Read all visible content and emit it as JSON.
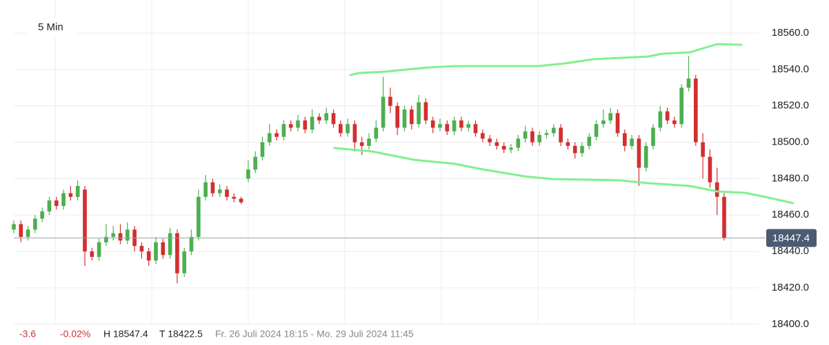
{
  "chart_data": {
    "type": "candlestick",
    "label": "5 Min",
    "up_color": "#4caf50",
    "down_color": "#d32f2f",
    "grid": true,
    "ylim": [
      18395,
      18578.2
    ],
    "yticks": [
      {
        "value": 18400,
        "label": "18400.0"
      },
      {
        "value": 18420,
        "label": "18420.0"
      },
      {
        "value": 18440,
        "label": "18440.0"
      },
      {
        "value": 18460,
        "label": "18460.0"
      },
      {
        "value": 18480,
        "label": "18480.0"
      },
      {
        "value": 18500,
        "label": "18500.0"
      },
      {
        "value": 18520,
        "label": "18520.0"
      },
      {
        "value": 18540,
        "label": "18540.0"
      },
      {
        "value": 18560,
        "label": "18560.0"
      }
    ],
    "last_price": 18447.4,
    "open": [
      18452,
      18455,
      18448,
      18452,
      18458,
      18462,
      18468,
      18465,
      18472,
      18470,
      18474,
      18440,
      18437,
      18445,
      18448,
      18450,
      18446,
      18452,
      18443,
      18440,
      18435,
      18445,
      18438,
      18450,
      18428,
      18440,
      18448,
      18470,
      18478,
      18472,
      18474,
      18470,
      18469,
      18480,
      18485,
      18492,
      18500,
      18505,
      18503,
      18510,
      18508,
      18512,
      18507,
      18514,
      18512,
      18516,
      18510,
      18505,
      18510,
      18500,
      18498,
      18502,
      18508,
      18525,
      18520,
      18508,
      18518,
      18510,
      18522,
      18512,
      18508,
      18510,
      18506,
      18512,
      18508,
      18510,
      18505,
      18502,
      18500,
      18498,
      18496,
      18497,
      18502,
      18506,
      18500,
      18504,
      18505,
      18508,
      18500,
      18498,
      18494,
      18498,
      18503,
      18510,
      18512,
      18516,
      18505,
      18498,
      18502,
      18486,
      18498,
      18508,
      18517,
      18512,
      18510,
      18530,
      18535,
      18500,
      18492,
      18478,
      18470
    ],
    "high": [
      18457,
      18457,
      18454,
      18460,
      18464,
      18470,
      18470,
      18474,
      18476,
      18479,
      18476,
      18442,
      18447,
      18455,
      18454,
      18455,
      18456,
      18454,
      18445,
      18442,
      18448,
      18447,
      18453,
      18452,
      18442,
      18452,
      18474,
      18482,
      18480,
      18477,
      18476,
      18472,
      18470,
      18490,
      18495,
      18503,
      18510,
      18507,
      18512,
      18512,
      18515,
      18514,
      18518,
      18516,
      18519,
      18518,
      18512,
      18513,
      18512,
      18503,
      18505,
      18512,
      18536,
      18530,
      18522,
      18520,
      18520,
      18526,
      18524,
      18514,
      18513,
      18512,
      18514,
      18514,
      18512,
      18512,
      18507,
      18504,
      18502,
      18500,
      18499,
      18504,
      18509,
      18508,
      18506,
      18507,
      18510,
      18510,
      18502,
      18500,
      18500,
      18505,
      18512,
      18518,
      18519,
      18518,
      18507,
      18504,
      18504,
      18500,
      18510,
      18520,
      18519,
      18514,
      18532,
      18547.4,
      18537,
      18505,
      18496,
      18486,
      18472
    ],
    "low": [
      18450,
      18445,
      18446,
      18450,
      18456,
      18460,
      18463,
      18463,
      18468,
      18468,
      18432,
      18435,
      18435,
      18443,
      18446,
      18444,
      18444,
      18440,
      18436,
      18432,
      18433,
      18436,
      18436,
      18422.5,
      18426,
      18438,
      18446,
      18468,
      18470,
      18470,
      18468,
      18467,
      18466,
      18478,
      18483,
      18490,
      18498,
      18501,
      18501,
      18506,
      18506,
      18505,
      18505,
      18510,
      18510,
      18508,
      18503,
      18503,
      18495,
      18493,
      18496,
      18500,
      18506,
      18516,
      18504,
      18506,
      18507,
      18508,
      18510,
      18505,
      18506,
      18504,
      18504,
      18506,
      18506,
      18503,
      18500,
      18498,
      18496,
      18494,
      18494,
      18495,
      18500,
      18498,
      18498,
      18502,
      18503,
      18498,
      18496,
      18491,
      18492,
      18496,
      18501,
      18508,
      18510,
      18503,
      18495,
      18496,
      18476,
      18484,
      18496,
      18506,
      18510,
      18508,
      18508,
      18528,
      18498,
      18480,
      18475,
      18460,
      18446
    ],
    "close": [
      18455,
      18448,
      18452,
      18458,
      18462,
      18468,
      18465,
      18472,
      18470,
      18476,
      18440,
      18437,
      18445,
      18448,
      18450,
      18446,
      18452,
      18443,
      18440,
      18435,
      18445,
      18438,
      18450,
      18428,
      18440,
      18448,
      18470,
      18478,
      18472,
      18474,
      18470,
      18469,
      18467,
      18485,
      18492,
      18500,
      18505,
      18503,
      18510,
      18508,
      18512,
      18507,
      18514,
      18512,
      18516,
      18510,
      18505,
      18510,
      18500,
      18498,
      18502,
      18508,
      18525,
      18520,
      18508,
      18518,
      18510,
      18522,
      18512,
      18508,
      18510,
      18506,
      18512,
      18508,
      18510,
      18505,
      18502,
      18500,
      18498,
      18496,
      18497,
      18502,
      18506,
      18500,
      18504,
      18505,
      18508,
      18500,
      18498,
      18494,
      18498,
      18503,
      18510,
      18512,
      18516,
      18505,
      18498,
      18502,
      18486,
      18498,
      18508,
      18517,
      18512,
      18510,
      18530,
      18535,
      18500,
      18492,
      18478,
      18470,
      18447.4
    ]
  },
  "footer": {
    "change": -3.6,
    "change_pct": {
      "value": -0.02,
      "label": "-0.02%"
    },
    "high": "H 18547.4",
    "low": "T 18422.5",
    "range": "Fr. 26 Juli 2024 18:15 - Mo. 29 Juli 2024 11:45"
  }
}
